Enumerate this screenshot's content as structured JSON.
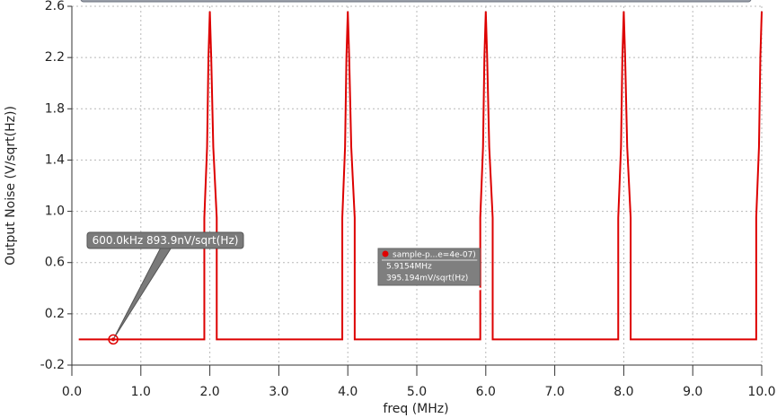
{
  "chart_data": {
    "type": "line",
    "xlabel": "freq (MHz)",
    "ylabel": "Output Noise (V/sqrt(Hz))",
    "color": "#dd0000",
    "grid": true,
    "xlim": [
      0,
      10
    ],
    "ylim": [
      -0.2,
      2.6
    ],
    "xticks": [
      {
        "value": 0,
        "label": "0.0"
      },
      {
        "value": 1,
        "label": "1.0"
      },
      {
        "value": 2,
        "label": "2.0"
      },
      {
        "value": 3,
        "label": "3.0"
      },
      {
        "value": 4,
        "label": "4.0"
      },
      {
        "value": 5,
        "label": "5.0"
      },
      {
        "value": 6,
        "label": "6.0"
      },
      {
        "value": 7,
        "label": "7.0"
      },
      {
        "value": 8,
        "label": "8.0"
      },
      {
        "value": 9,
        "label": "9.0"
      },
      {
        "value": 10,
        "label": "10.0"
      }
    ],
    "yticks": [
      -0.2,
      0.2,
      0.6,
      {
        "value": 1,
        "label": "1.0"
      },
      1.4,
      1.8,
      2.2,
      2.6
    ],
    "x": [
      0.1,
      1.92,
      1.92,
      1.96,
      1.98,
      2.0,
      2.02,
      2.05,
      2.1,
      2.1,
      3.92,
      3.92,
      3.96,
      3.98,
      4.0,
      4.02,
      4.05,
      4.1,
      4.1,
      5.92,
      5.92,
      5.96,
      5.98,
      6.0,
      6.02,
      6.05,
      6.1,
      6.1,
      7.92,
      7.92,
      7.96,
      7.98,
      8.0,
      8.02,
      8.05,
      8.1,
      8.1,
      9.92,
      9.92,
      9.96,
      9.98,
      10.0
    ],
    "values": [
      0,
      0,
      0.95,
      1.5,
      2.2,
      2.56,
      2.2,
      1.5,
      0.95,
      0,
      0,
      0.95,
      1.5,
      2.2,
      2.56,
      2.2,
      1.5,
      0.95,
      0,
      0,
      0.95,
      1.5,
      2.2,
      2.56,
      2.2,
      1.5,
      0.95,
      0,
      0,
      0.95,
      1.5,
      2.2,
      2.56,
      2.2,
      1.5,
      0.95,
      0,
      0,
      0.95,
      1.5,
      2.2,
      2.56
    ],
    "annotations": [
      {
        "x": 0.6,
        "y": 8.939e-07,
        "text": "600.0kHz 893.9nV/sqrt(Hz)"
      },
      {
        "x": 5.9154,
        "y": 0.395194,
        "lines": [
          "sample-p...e=4e-07)",
          "5.9154MHz",
          "395.194mV/sqrt(Hz)"
        ]
      }
    ]
  }
}
